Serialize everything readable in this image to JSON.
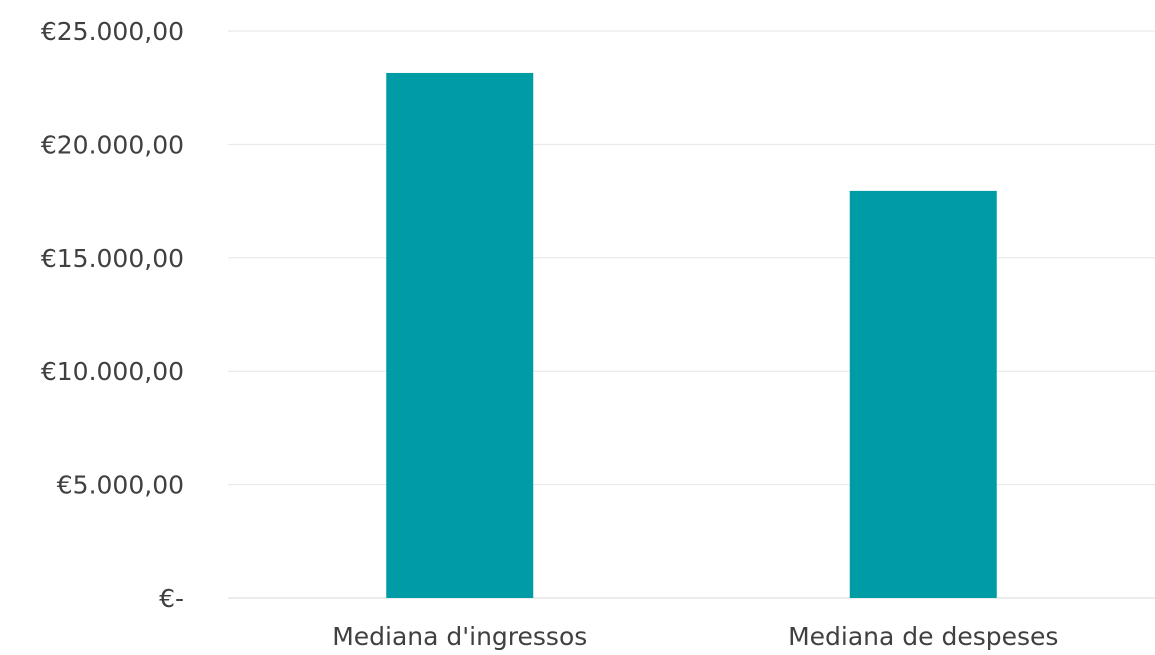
{
  "chart_data": {
    "type": "bar",
    "title": "",
    "xlabel": "",
    "ylabel": "",
    "categories": [
      "Mediana d'ingressos",
      "Mediana de despeses"
    ],
    "values": [
      23150,
      17950
    ],
    "ylim": [
      0,
      25000
    ],
    "y_ticks": [
      0,
      5000,
      10000,
      15000,
      20000,
      25000
    ],
    "y_tick_labels": [
      "€-",
      "€5.000,00",
      "€10.000,00",
      "€15.000,00",
      "€20.000,00",
      "€25.000,00"
    ],
    "grid": true,
    "legend": "none",
    "colors": {
      "bar": "#009ca6",
      "grid": "#e6e6e6",
      "text": "#404040"
    }
  }
}
